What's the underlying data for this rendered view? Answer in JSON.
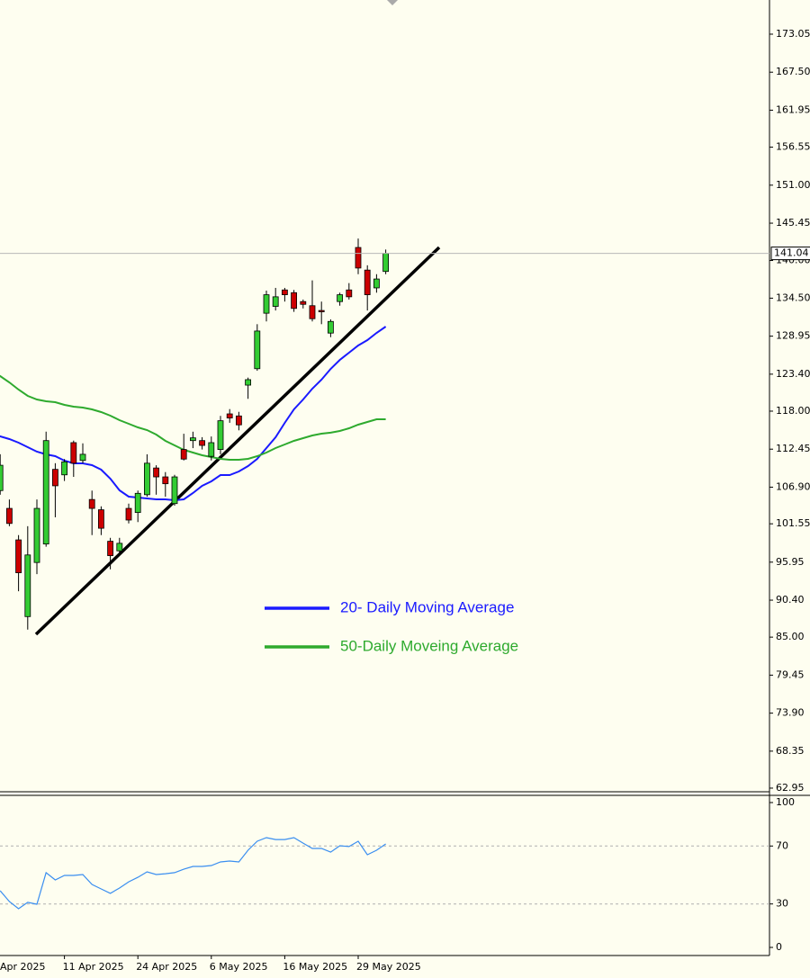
{
  "chart_data": [
    {
      "type": "candlestick",
      "categories": [
        "Apr 2025",
        null,
        null,
        null,
        null,
        null,
        null,
        null,
        "11 Apr 2025",
        null,
        null,
        null,
        null,
        null,
        null,
        null,
        "24 Apr 2025",
        null,
        null,
        null,
        null,
        null,
        null,
        null,
        "6 May 2025",
        null,
        null,
        null,
        null,
        null,
        null,
        null,
        "16 May 2025",
        null,
        null,
        null,
        null,
        null,
        null,
        null,
        "29 May 2025",
        null,
        null,
        null
      ],
      "open": [
        null,
        106.4,
        103.8,
        99.2,
        88.0,
        95.9,
        98.6,
        109.5,
        108.7,
        113.4,
        110.8,
        105.1,
        103.6,
        99.0,
        97.6,
        103.8,
        103.2,
        105.8,
        109.7,
        108.4,
        104.5,
        112.4,
        113.7,
        113.7,
        111.4,
        112.4,
        117.6,
        117.3,
        121.8,
        124.2,
        132.3,
        133.3,
        135.7,
        135.3,
        134.0,
        133.4,
        132.7,
        129.4,
        134.0,
        135.7,
        141.9,
        138.6,
        136.0,
        138.4
      ],
      "high": [
        null,
        111.7,
        105.1,
        99.9,
        101.2,
        105.1,
        115.0,
        110.4,
        111.0,
        113.7,
        113.3,
        106.4,
        104.1,
        99.5,
        99.5,
        104.5,
        106.4,
        111.7,
        110.1,
        109.1,
        108.7,
        114.7,
        115.0,
        114.2,
        114.3,
        117.3,
        118.3,
        117.9,
        122.9,
        130.7,
        135.6,
        136.0,
        136.0,
        135.7,
        134.3,
        137.1,
        134.0,
        131.4,
        135.3,
        136.7,
        143.2,
        139.3,
        138.0,
        141.6
      ],
      "low": [
        null,
        105.8,
        101.2,
        91.7,
        86.1,
        94.2,
        98.2,
        102.5,
        107.8,
        108.4,
        110.4,
        99.9,
        99.9,
        94.9,
        97.2,
        101.6,
        101.8,
        105.5,
        105.8,
        105.5,
        104.2,
        110.8,
        112.6,
        112.4,
        110.8,
        111.7,
        116.3,
        115.2,
        119.8,
        123.9,
        131.1,
        132.7,
        134.0,
        132.5,
        133.0,
        131.1,
        130.7,
        128.8,
        133.4,
        134.3,
        138.0,
        132.7,
        135.3,
        138.0
      ],
      "close": [
        null,
        110.1,
        101.6,
        94.4,
        97.0,
        103.8,
        113.7,
        107.1,
        110.6,
        110.4,
        111.7,
        103.8,
        100.9,
        96.9,
        98.7,
        102.1,
        106.0,
        110.4,
        108.4,
        107.4,
        108.4,
        111.0,
        114.1,
        113.0,
        113.4,
        116.6,
        117.0,
        116.0,
        122.6,
        129.7,
        135.0,
        134.7,
        135.0,
        133.0,
        133.6,
        131.5,
        132.5,
        131.1,
        135.0,
        134.7,
        138.9,
        135.0,
        137.3,
        141.04
      ],
      "up_color": "#33cc33",
      "down_color": "#cc0000",
      "series": [
        {
          "name": "20- Daily Moving Average",
          "color": "#1a1aff",
          "values": [
            114.71,
            114.32,
            113.92,
            113.4,
            112.74,
            112.09,
            111.69,
            111.43,
            110.77,
            110.38,
            110.38,
            110.11,
            109.46,
            108.14,
            106.44,
            105.52,
            105.38,
            105.25,
            105.12,
            105.12,
            104.99,
            105.12,
            106.04,
            107.09,
            107.75,
            108.67,
            108.67,
            109.19,
            109.98,
            111.03,
            112.61,
            114.19,
            116.29,
            118.26,
            119.71,
            121.28,
            122.6,
            124.17,
            125.49,
            126.54,
            127.59,
            128.38,
            129.43,
            130.35
          ]
        },
        {
          "name": "50-Daily Moveing Average",
          "color": "#2eaa2e",
          "values": [
            123.91,
            123.12,
            122.2,
            121.15,
            120.23,
            119.71,
            119.44,
            119.31,
            118.92,
            118.65,
            118.52,
            118.26,
            117.87,
            117.34,
            116.68,
            116.16,
            115.63,
            115.24,
            114.58,
            113.66,
            113.0,
            112.35,
            111.95,
            111.56,
            111.3,
            111.03,
            110.9,
            110.9,
            111.03,
            111.43,
            111.95,
            112.61,
            113.14,
            113.66,
            114.06,
            114.45,
            114.71,
            114.85,
            115.11,
            115.5,
            116.03,
            116.42,
            116.82,
            116.82
          ]
        }
      ],
      "last_price": 141.04,
      "ylim": [
        62.42,
        178.04
      ],
      "yticks": [
        173.05,
        {
          "value": 167.5,
          "label": "167.50"
        },
        161.95,
        156.55,
        {
          "value": 151,
          "label": "151.00"
        },
        145.45,
        {
          "value": 140,
          "label": "140.00"
        },
        {
          "value": 134.5,
          "label": "134.50"
        },
        128.95,
        {
          "value": 123.4,
          "label": "123.40"
        },
        {
          "value": 118,
          "label": "118.00"
        },
        112.45,
        {
          "value": 106.9,
          "label": "106.90"
        },
        101.55,
        95.95,
        {
          "value": 90.4,
          "label": "90.40"
        },
        {
          "value": 85,
          "label": "85.00"
        },
        79.45,
        {
          "value": 73.9,
          "label": "73.90"
        },
        68.35,
        62.95
      ]
    },
    {
      "type": "line",
      "color": "#3a8ef0",
      "values": [
        null,
        39.1,
        31.7,
        26.7,
        31.1,
        29.8,
        51.6,
        46.6,
        49.7,
        49.7,
        50.3,
        43.5,
        40.4,
        37.3,
        41.0,
        45.3,
        48.4,
        52.2,
        50.3,
        50.9,
        51.6,
        54.0,
        55.9,
        55.9,
        56.5,
        59.0,
        59.6,
        59.0,
        67.1,
        73.3,
        75.8,
        74.5,
        74.5,
        75.8,
        72.0,
        68.3,
        68.3,
        65.8,
        70.2,
        69.6,
        73.3,
        64.0,
        67.1,
        71.4
      ],
      "ylim": [
        0,
        100
      ],
      "yticks": [
        100,
        70,
        30,
        0
      ],
      "grid_ticks": [
        70,
        30
      ]
    }
  ]
}
